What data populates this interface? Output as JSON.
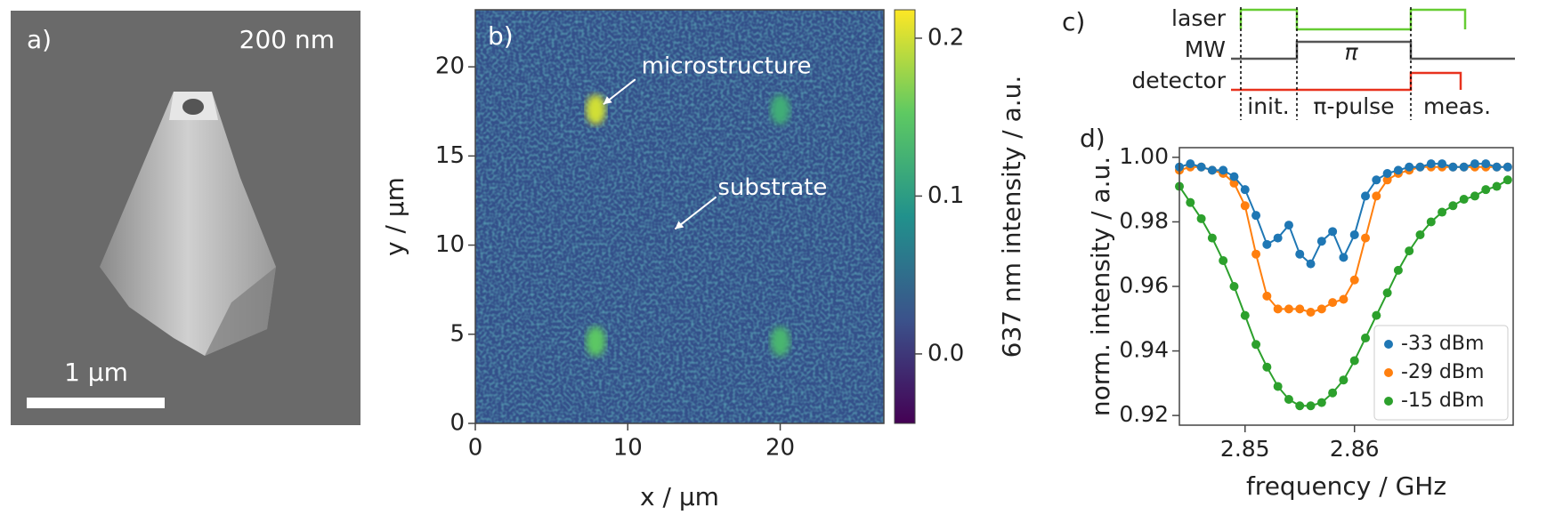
{
  "sem": {
    "label": "a)",
    "scale": "200 nm",
    "bar": "1 µm"
  },
  "timing": {
    "label": "c)",
    "rows": [
      "laser",
      "MW",
      "detector"
    ],
    "pulse": "π",
    "phases": [
      "init.",
      "π-pulse",
      "meas."
    ]
  },
  "chart_data": [
    {
      "type": "heatmap",
      "label": "b)",
      "xlabel": "x / µm",
      "ylabel": "y / µm",
      "xlim": [
        0,
        26.8
      ],
      "xticks": [
        0,
        10,
        20
      ],
      "ylim": [
        0,
        23.2
      ],
      "yticks": [
        0,
        5,
        10,
        15,
        20
      ],
      "colorbar": {
        "label": "637 nm intensity / a.u.",
        "lim": [
          -0.044,
          0.218
        ],
        "ticks": [
          {
            "value": 0,
            "label": "0.0"
          },
          0.1,
          0.2
        ]
      },
      "spots": {
        "x": [
          7.9,
          20,
          7.9,
          20
        ],
        "y": [
          17.6,
          17.6,
          4.6,
          4.6
        ],
        "values": [
          0.2,
          0.12,
          0.15,
          0.13
        ]
      },
      "annotations": [
        "microstructure",
        "substrate"
      ]
    },
    {
      "type": "line",
      "label": "d)",
      "xlabel": "frequency / GHz",
      "ylabel": "norm. intensity / a.u.",
      "x": [
        2.844,
        2.845,
        2.846,
        2.847,
        2.848,
        2.849,
        2.85,
        2.851,
        2.852,
        2.853,
        2.854,
        2.855,
        2.856,
        2.857,
        2.858,
        2.859,
        2.86,
        2.861,
        2.862,
        2.863,
        2.864,
        2.865,
        2.866,
        2.867,
        2.868,
        2.869,
        2.87,
        2.871,
        2.872,
        2.873,
        2.874
      ],
      "xlim": [
        2.844,
        2.8745
      ],
      "xticks": [
        2.85,
        2.86
      ],
      "ylim": [
        0.917,
        1.003
      ],
      "yticks": [
        0.92,
        0.94,
        0.96,
        0.98,
        {
          "value": 1,
          "label": "1.00"
        }
      ],
      "legend": "lower right",
      "series": [
        {
          "name": "-33 dBm",
          "color": "#1f77b4",
          "values": [
            0.997,
            0.998,
            0.997,
            0.996,
            0.996,
            0.994,
            0.99,
            0.982,
            0.973,
            0.975,
            0.979,
            0.97,
            0.967,
            0.974,
            0.977,
            0.969,
            0.976,
            0.988,
            0.993,
            0.995,
            0.996,
            0.997,
            0.997,
            0.998,
            0.998,
            0.997,
            0.997,
            0.998,
            0.998,
            0.997,
            0.997
          ]
        },
        {
          "name": "-29 dBm",
          "color": "#ff7f0e",
          "values": [
            0.996,
            0.997,
            0.997,
            0.996,
            0.995,
            0.992,
            0.985,
            0.97,
            0.957,
            0.953,
            0.953,
            0.953,
            0.952,
            0.953,
            0.955,
            0.956,
            0.962,
            0.975,
            0.988,
            0.993,
            0.995,
            0.996,
            0.997,
            0.997,
            0.997,
            0.997,
            0.997,
            0.997,
            0.997,
            0.997,
            0.997
          ]
        },
        {
          "name": "-15 dBm",
          "color": "#2ca02c",
          "values": [
            0.991,
            0.986,
            0.981,
            0.975,
            0.968,
            0.96,
            0.951,
            0.942,
            0.935,
            0.929,
            0.925,
            0.923,
            0.923,
            0.924,
            0.927,
            0.931,
            0.937,
            0.944,
            0.951,
            0.958,
            0.965,
            0.971,
            0.976,
            0.98,
            0.983,
            0.985,
            0.987,
            0.988,
            0.99,
            0.991,
            0.993
          ]
        }
      ]
    }
  ]
}
